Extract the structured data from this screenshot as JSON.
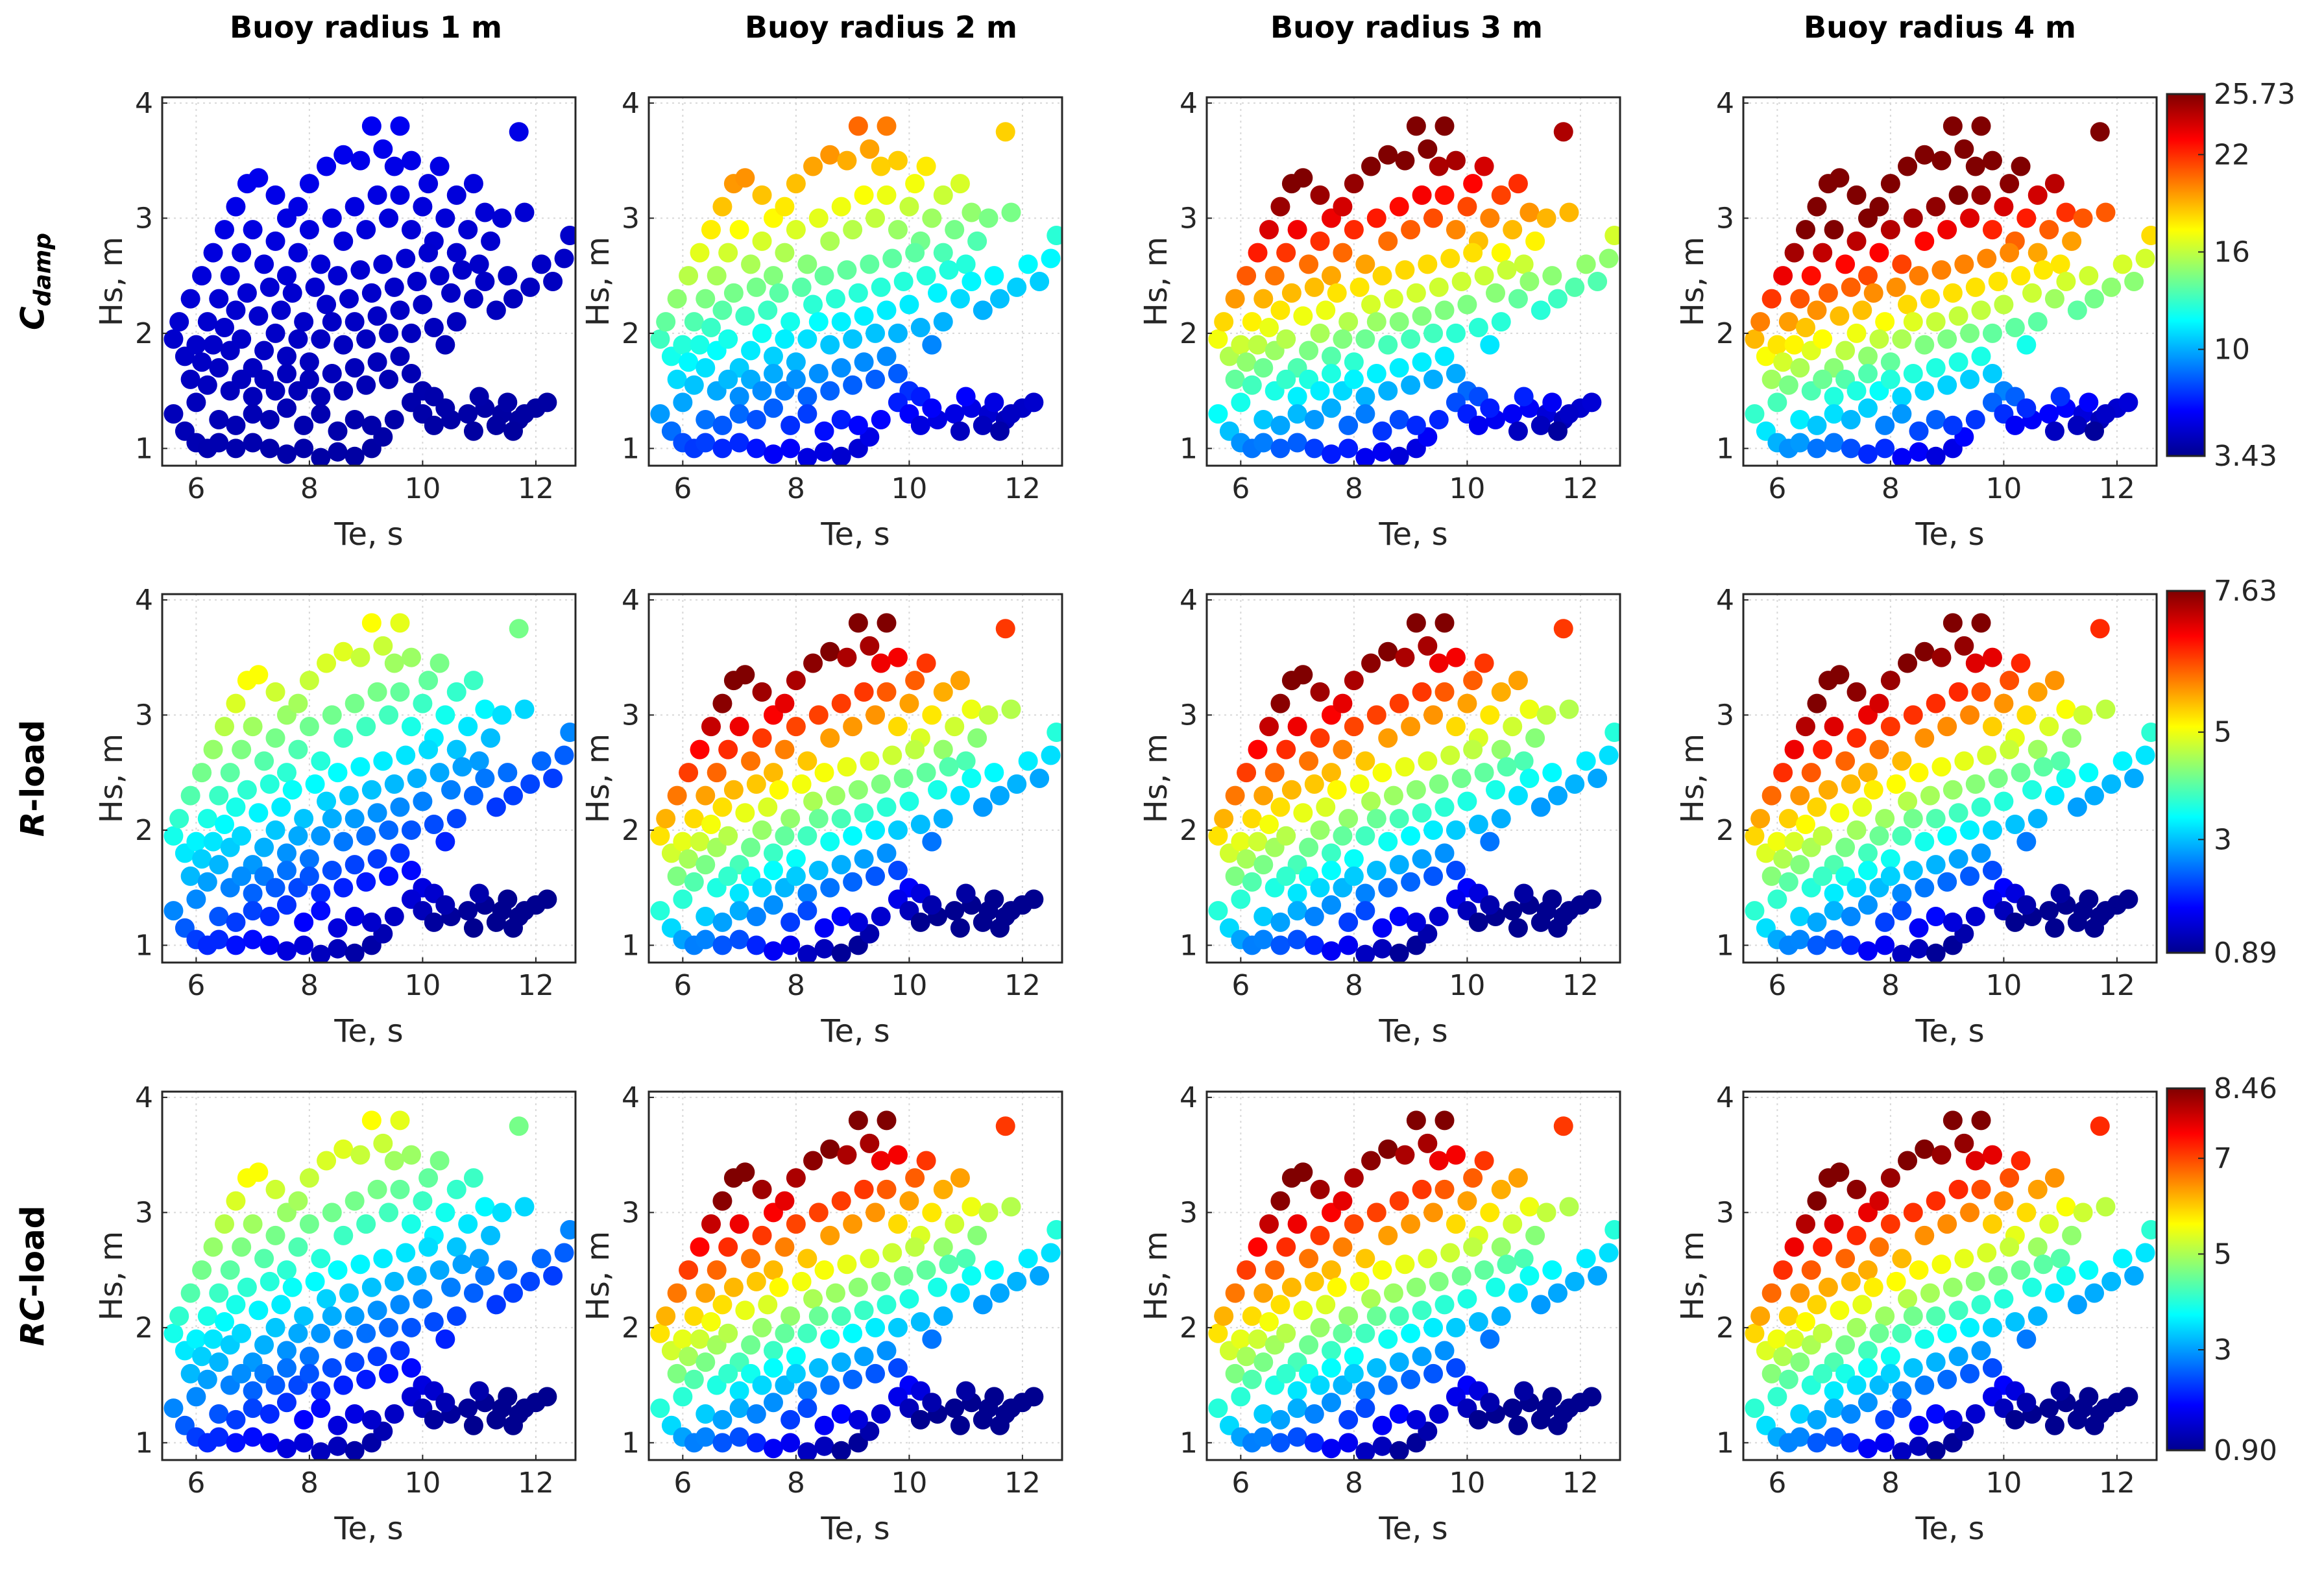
{
  "colormap": [
    "#00008f",
    "#0000ff",
    "#0080ff",
    "#00ffff",
    "#80ff80",
    "#ffff00",
    "#ff8000",
    "#ff0000",
    "#800000"
  ],
  "chart_data": {
    "type": "scatter",
    "column_titles": [
      "Buoy radius 1 m",
      "Buoy radius 2 m",
      "Buoy radius 3 m",
      "Buoy radius 4 m"
    ],
    "row_titles": [
      {
        "main": "C",
        "sub": "damp",
        "suffix": ""
      },
      {
        "main": "R",
        "sub": "",
        "suffix": "-load"
      },
      {
        "main": "RC",
        "sub": "",
        "suffix": "-load"
      }
    ],
    "xlabel": "Te, s",
    "ylabel": "Hs, m",
    "xlim": [
      5.4,
      12.7
    ],
    "ylim": [
      0.85,
      4.05
    ],
    "xticks": [
      6,
      8,
      10,
      12
    ],
    "yticks": [
      1,
      2,
      3,
      4
    ],
    "grid": true,
    "colorbars": [
      {
        "min": 3.43,
        "max": 25.73,
        "ticks": [
          {
            "value": 3.43,
            "label": "3.43"
          },
          {
            "value": 10,
            "label": "10"
          },
          {
            "value": 16,
            "label": "16"
          },
          {
            "value": 22,
            "label": "22"
          },
          {
            "value": 25.73,
            "label": "25.73"
          }
        ]
      },
      {
        "min": 0.89,
        "max": 7.63,
        "ticks": [
          {
            "value": 0.89,
            "label": "0.89"
          },
          {
            "value": 3,
            "label": "3"
          },
          {
            "value": 5,
            "label": "5"
          },
          {
            "value": 7.63,
            "label": "7.63"
          }
        ]
      },
      {
        "min": 0.9,
        "max": 8.46,
        "ticks": [
          {
            "value": 0.9,
            "label": "0.90"
          },
          {
            "value": 3,
            "label": "3"
          },
          {
            "value": 5,
            "label": "5"
          },
          {
            "value": 7,
            "label": "7"
          },
          {
            "value": 8.46,
            "label": "8.46"
          }
        ]
      }
    ],
    "sea_states": [
      [
        5.6,
        1.95
      ],
      [
        5.7,
        2.1
      ],
      [
        5.9,
        2.3
      ],
      [
        6.1,
        2.5
      ],
      [
        6.3,
        2.7
      ],
      [
        6.5,
        2.9
      ],
      [
        6.7,
        3.1
      ],
      [
        6.9,
        3.3
      ],
      [
        7.1,
        3.35
      ],
      [
        7.4,
        3.2
      ],
      [
        7.6,
        3.0
      ],
      [
        7.8,
        3.1
      ],
      [
        8.0,
        3.3
      ],
      [
        8.3,
        3.45
      ],
      [
        8.6,
        3.55
      ],
      [
        8.9,
        3.5
      ],
      [
        9.1,
        3.8
      ],
      [
        9.6,
        3.8
      ],
      [
        9.3,
        3.6
      ],
      [
        9.5,
        3.45
      ],
      [
        9.8,
        3.5
      ],
      [
        10.1,
        3.3
      ],
      [
        10.3,
        3.45
      ],
      [
        10.6,
        3.2
      ],
      [
        10.9,
        3.3
      ],
      [
        11.1,
        3.05
      ],
      [
        11.4,
        3.0
      ],
      [
        11.7,
        3.75
      ],
      [
        11.8,
        3.05
      ],
      [
        12.6,
        2.85
      ],
      [
        5.8,
        1.8
      ],
      [
        6.0,
        1.9
      ],
      [
        6.2,
        2.1
      ],
      [
        6.4,
        2.3
      ],
      [
        6.6,
        2.5
      ],
      [
        6.8,
        2.7
      ],
      [
        7.0,
        2.9
      ],
      [
        7.2,
        2.6
      ],
      [
        7.4,
        2.8
      ],
      [
        7.6,
        2.5
      ],
      [
        7.8,
        2.7
      ],
      [
        8.0,
        2.9
      ],
      [
        8.2,
        2.6
      ],
      [
        8.4,
        3.0
      ],
      [
        8.6,
        2.8
      ],
      [
        8.8,
        3.1
      ],
      [
        9.0,
        2.9
      ],
      [
        9.2,
        3.2
      ],
      [
        9.4,
        3.0
      ],
      [
        9.6,
        3.2
      ],
      [
        9.8,
        2.9
      ],
      [
        10.0,
        3.1
      ],
      [
        10.2,
        2.8
      ],
      [
        10.4,
        3.0
      ],
      [
        10.6,
        2.7
      ],
      [
        10.8,
        2.9
      ],
      [
        11.0,
        2.6
      ],
      [
        11.2,
        2.8
      ],
      [
        11.5,
        2.5
      ],
      [
        11.9,
        2.4
      ],
      [
        12.1,
        2.6
      ],
      [
        12.3,
        2.45
      ],
      [
        12.5,
        2.65
      ],
      [
        5.9,
        1.6
      ],
      [
        6.1,
        1.75
      ],
      [
        6.3,
        1.9
      ],
      [
        6.5,
        2.05
      ],
      [
        6.7,
        2.2
      ],
      [
        6.9,
        2.35
      ],
      [
        7.1,
        2.15
      ],
      [
        7.3,
        2.4
      ],
      [
        7.5,
        2.2
      ],
      [
        7.7,
        2.35
      ],
      [
        7.9,
        2.1
      ],
      [
        8.1,
        2.4
      ],
      [
        8.3,
        2.25
      ],
      [
        8.5,
        2.5
      ],
      [
        8.7,
        2.3
      ],
      [
        8.9,
        2.55
      ],
      [
        9.1,
        2.35
      ],
      [
        9.3,
        2.6
      ],
      [
        9.5,
        2.4
      ],
      [
        9.7,
        2.65
      ],
      [
        9.9,
        2.45
      ],
      [
        10.1,
        2.7
      ],
      [
        10.3,
        2.5
      ],
      [
        10.5,
        2.35
      ],
      [
        10.7,
        2.55
      ],
      [
        10.9,
        2.3
      ],
      [
        11.1,
        2.45
      ],
      [
        11.3,
        2.2
      ],
      [
        11.6,
        2.3
      ],
      [
        6.0,
        1.4
      ],
      [
        6.2,
        1.55
      ],
      [
        6.4,
        1.7
      ],
      [
        6.6,
        1.85
      ],
      [
        6.8,
        1.95
      ],
      [
        7.0,
        1.7
      ],
      [
        7.2,
        1.85
      ],
      [
        7.4,
        2.0
      ],
      [
        7.6,
        1.8
      ],
      [
        7.8,
        1.95
      ],
      [
        8.0,
        1.75
      ],
      [
        8.2,
        1.95
      ],
      [
        8.4,
        2.1
      ],
      [
        8.6,
        1.9
      ],
      [
        8.8,
        2.1
      ],
      [
        9.0,
        1.95
      ],
      [
        9.2,
        2.15
      ],
      [
        9.4,
        2.0
      ],
      [
        9.6,
        2.2
      ],
      [
        9.8,
        2.0
      ],
      [
        10.0,
        2.25
      ],
      [
        10.2,
        2.05
      ],
      [
        10.4,
        1.9
      ],
      [
        10.6,
        2.1
      ],
      [
        6.6,
        1.5
      ],
      [
        6.8,
        1.6
      ],
      [
        7.0,
        1.45
      ],
      [
        7.2,
        1.6
      ],
      [
        7.4,
        1.5
      ],
      [
        7.6,
        1.65
      ],
      [
        7.8,
        1.5
      ],
      [
        8.0,
        1.6
      ],
      [
        8.2,
        1.45
      ],
      [
        8.4,
        1.65
      ],
      [
        8.6,
        1.5
      ],
      [
        8.8,
        1.7
      ],
      [
        9.0,
        1.55
      ],
      [
        9.2,
        1.75
      ],
      [
        9.4,
        1.6
      ],
      [
        9.6,
        1.8
      ],
      [
        9.8,
        1.65
      ],
      [
        10.0,
        1.5
      ],
      [
        5.6,
        1.3
      ],
      [
        5.8,
        1.15
      ],
      [
        6.0,
        1.05
      ],
      [
        6.2,
        1.0
      ],
      [
        6.4,
        1.05
      ],
      [
        6.7,
        1.0
      ],
      [
        7.0,
        1.05
      ],
      [
        7.3,
        1.0
      ],
      [
        7.6,
        0.95
      ],
      [
        7.9,
        1.0
      ],
      [
        8.2,
        0.92
      ],
      [
        8.5,
        0.97
      ],
      [
        8.8,
        0.93
      ],
      [
        9.1,
        1.0
      ],
      [
        9.3,
        1.1
      ],
      [
        9.5,
        1.25
      ],
      [
        9.8,
        1.4
      ],
      [
        10.2,
        1.45
      ],
      [
        10.0,
        1.3
      ],
      [
        6.4,
        1.25
      ],
      [
        6.7,
        1.2
      ],
      [
        7.0,
        1.3
      ],
      [
        7.3,
        1.25
      ],
      [
        7.6,
        1.35
      ],
      [
        7.9,
        1.2
      ],
      [
        8.2,
        1.3
      ],
      [
        8.5,
        1.15
      ],
      [
        8.8,
        1.25
      ],
      [
        9.1,
        1.2
      ],
      [
        10.2,
        1.2
      ],
      [
        10.5,
        1.25
      ],
      [
        10.8,
        1.3
      ],
      [
        11.1,
        1.35
      ],
      [
        11.4,
        1.3
      ],
      [
        11.7,
        1.25
      ],
      [
        12.0,
        1.35
      ],
      [
        12.2,
        1.4
      ],
      [
        10.9,
        1.15
      ],
      [
        11.3,
        1.2
      ],
      [
        11.6,
        1.15
      ],
      [
        10.4,
        1.35
      ],
      [
        11.0,
        1.45
      ],
      [
        11.5,
        1.4
      ],
      [
        11.8,
        1.3
      ]
    ]
  }
}
